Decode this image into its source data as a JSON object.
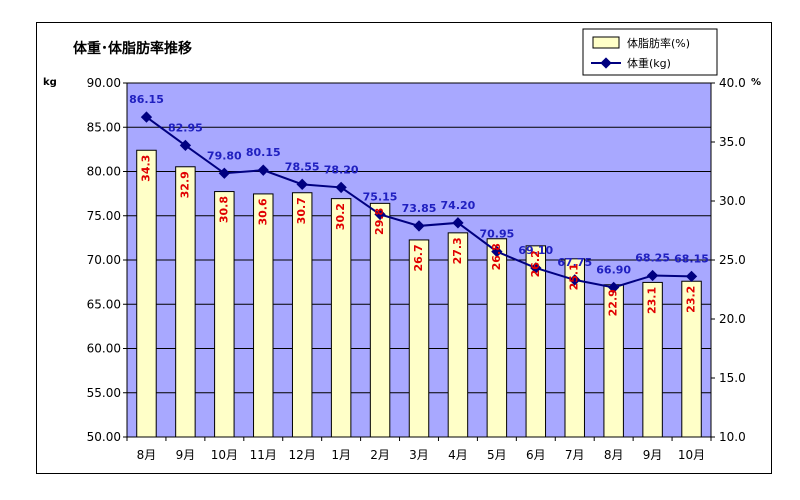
{
  "chart_data": {
    "type": "bar+line",
    "title": "体重･体脂肪率推移",
    "categories": [
      "8月",
      "9月",
      "10月",
      "11月",
      "12月",
      "1月",
      "2月",
      "3月",
      "4月",
      "5月",
      "6月",
      "7月",
      "8月",
      "9月",
      "10月"
    ],
    "series": [
      {
        "name": "体脂肪率(%)",
        "type": "bar",
        "axis": "right",
        "values": [
          34.3,
          32.9,
          30.8,
          30.6,
          30.7,
          30.2,
          29.8,
          26.7,
          27.3,
          26.8,
          26.2,
          25.1,
          22.9,
          23.1,
          23.2
        ],
        "labels": [
          "34.3",
          "32.9",
          "30.8",
          "30.6",
          "30.7",
          "30.2",
          "29.8",
          "26.7",
          "27.3",
          "26.8",
          "26.2",
          "25.1",
          "22.9",
          "23.1",
          "23.2"
        ]
      },
      {
        "name": "体重(kg)",
        "type": "line",
        "axis": "left",
        "values": [
          86.15,
          82.95,
          79.8,
          80.15,
          78.55,
          78.2,
          75.15,
          73.85,
          74.2,
          70.95,
          69.1,
          67.75,
          66.9,
          68.25,
          68.15
        ],
        "labels": [
          "86.15",
          "82.95",
          "79.80",
          "80.15",
          "78.55",
          "78.20",
          "75.15",
          "73.85",
          "74.20",
          "70.95",
          "69.10",
          "67.75",
          "66.90",
          "68.25",
          "68.15"
        ]
      }
    ],
    "y_left": {
      "unit": "kg",
      "range": [
        50,
        90
      ],
      "ticks": [
        "50.00",
        "55.00",
        "60.00",
        "65.00",
        "70.00",
        "75.00",
        "80.00",
        "85.00",
        "90.00"
      ]
    },
    "y_right": {
      "unit": "%",
      "range": [
        10,
        40
      ],
      "ticks": [
        "10.0",
        "15.0",
        "20.0",
        "25.0",
        "30.0",
        "35.0",
        "40.0"
      ]
    },
    "legend_position": "top-right",
    "grid": true,
    "colors": {
      "plot_bg": "#a8a8ff",
      "bar_fill": "#ffffc8",
      "line": "#000080",
      "weight_label": "#2020c0",
      "fat_label": "#e00000"
    }
  }
}
